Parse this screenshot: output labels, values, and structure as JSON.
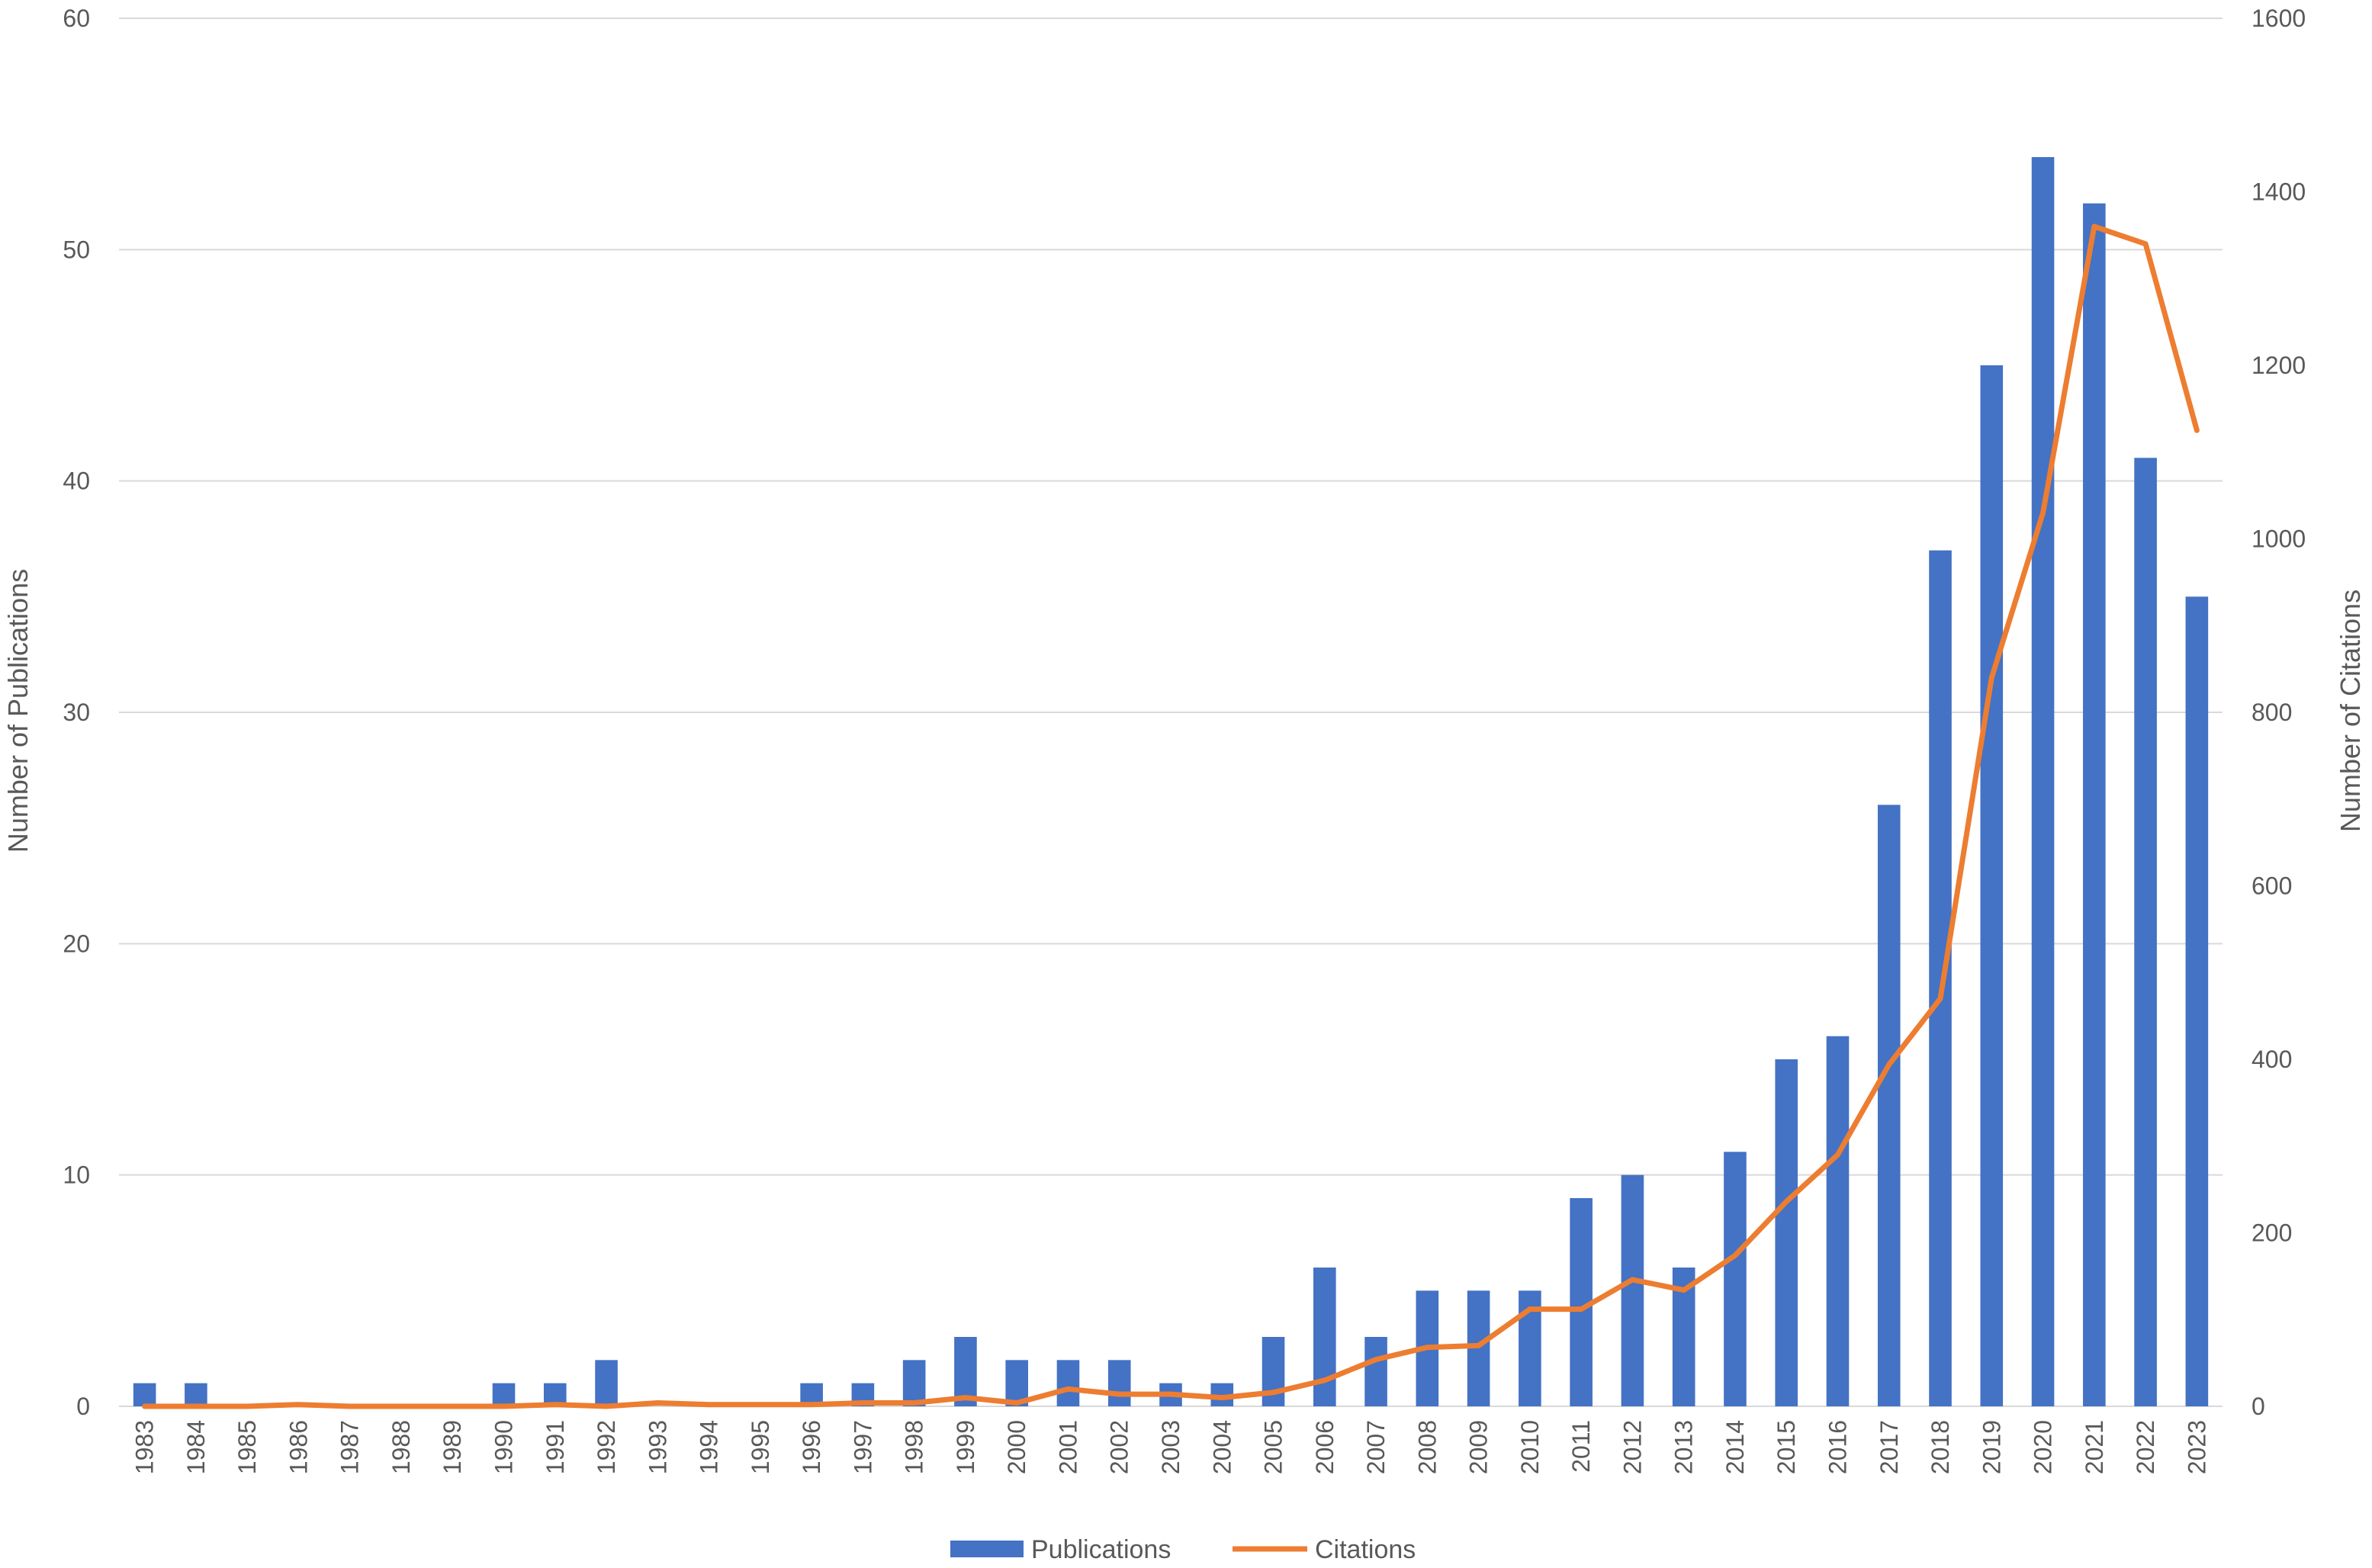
{
  "chart_data": {
    "type": "bar",
    "categories": [
      "1983",
      "1984",
      "1985",
      "1986",
      "1987",
      "1988",
      "1989",
      "1990",
      "1991",
      "1992",
      "1993",
      "1994",
      "1995",
      "1996",
      "1997",
      "1998",
      "1999",
      "2000",
      "2001",
      "2002",
      "2003",
      "2004",
      "2005",
      "2006",
      "2007",
      "2008",
      "2009",
      "2010",
      "2011",
      "2012",
      "2013",
      "2014",
      "2015",
      "2016",
      "2017",
      "2018",
      "2019",
      "2020",
      "2021",
      "2022",
      "2023"
    ],
    "series": [
      {
        "name": "Publications",
        "type": "bar",
        "axis": "left",
        "color": "#4472C4",
        "values": [
          1,
          1,
          0,
          0,
          0,
          0,
          0,
          1,
          1,
          2,
          0,
          0,
          0,
          1,
          1,
          2,
          3,
          2,
          2,
          2,
          1,
          1,
          3,
          6,
          3,
          5,
          5,
          5,
          9,
          10,
          6,
          11,
          15,
          16,
          26,
          37,
          45,
          54,
          52,
          41,
          35
        ]
      },
      {
        "name": "Citations",
        "type": "line",
        "axis": "right",
        "color": "#ED7D31",
        "values": [
          0,
          0,
          0,
          2,
          0,
          0,
          0,
          0,
          2,
          0,
          4,
          2,
          2,
          2,
          4,
          4,
          10,
          4,
          20,
          14,
          14,
          10,
          16,
          30,
          54,
          68,
          70,
          112,
          112,
          146,
          134,
          174,
          236,
          290,
          394,
          470,
          840,
          1030,
          1360,
          1340,
          1125
        ]
      }
    ],
    "title": "",
    "xlabel": "",
    "ylabel": "Number of Publications",
    "y2label": "Number of Citations",
    "ylim": [
      0,
      60
    ],
    "y2lim": [
      0,
      1600
    ],
    "yticks": [
      "0",
      "10",
      "20",
      "30",
      "40",
      "50",
      "60"
    ],
    "y2ticks": [
      "0",
      "200",
      "400",
      "600",
      "800",
      "1000",
      "1200",
      "1400",
      "1600"
    ],
    "grid": true,
    "legend_position": "bottom-center"
  }
}
